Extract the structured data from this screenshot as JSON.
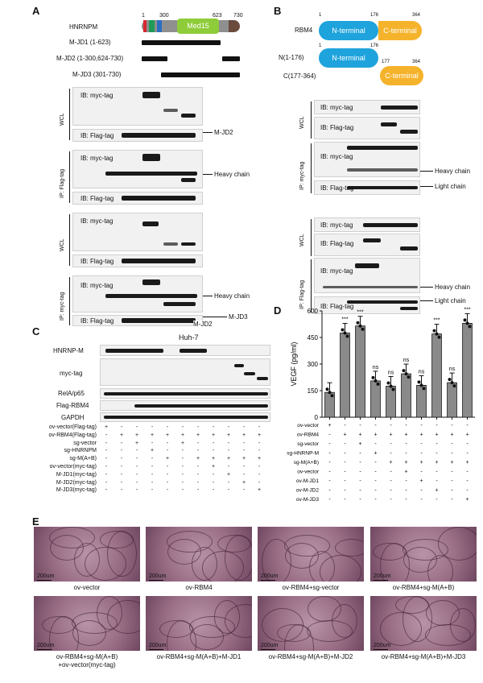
{
  "panels": {
    "a": "A",
    "b": "B",
    "c": "C",
    "d": "D",
    "e": "E"
  },
  "panel_a": {
    "protein": "HNRNPM",
    "domain": "Med15",
    "pos_start": "1",
    "pos_300": "300",
    "pos_623": "623",
    "pos_730": "730",
    "constructs": [
      "M-JD1 (1-623)",
      "M-JD2 (1-300,624-730)",
      "M-JD3 (301-730)"
    ],
    "myc_tag": "IB: myc-tag",
    "flag_tag": "IB: Flag-tag",
    "wcl": "WCL",
    "ip_flag": "IP: Flag-tag",
    "ip_myc": "IP: myc-tag",
    "heavy_chain": "Heavy chain",
    "mjd2": "M-JD2",
    "mjd3": "M-JD3"
  },
  "panel_b": {
    "protein": "RBM4",
    "nterm_label": "N(1-176)",
    "cterm_label": "C(177-364)",
    "nterm": "N-terminal",
    "cterm": "C-terminal",
    "pos_1": "1",
    "pos_176": "176",
    "pos_177": "177",
    "pos_364": "364",
    "myc_tag": "IB: myc-tag",
    "flag_tag": "IB: Flag-tag",
    "wcl": "WCL",
    "ip_myc": "IP: myc-tag",
    "ip_flag": "IP: Flag-tag",
    "heavy_chain": "Heavy chain",
    "light_chain": "Light chain"
  },
  "panel_c": {
    "cell_line": "Huh-7",
    "blots": [
      "HNRNP-M",
      "myc-tag",
      "RelA/p65",
      "Flag-RBM4",
      "GAPDH"
    ],
    "conditions": [
      "ov-vector(Flag-tag)",
      "ov-RBM4(Flag-tag)",
      "sg-vector",
      "sg-HNRNPM",
      "sg-M(A+B)",
      "ov-vector(myc-tag)",
      "M-JD1(myc-tag)",
      "M-JD2(myc-tag)",
      "M-JD3(myc-tag)"
    ],
    "grid": [
      [
        "+",
        "-",
        "-",
        "-",
        "-",
        "-",
        "-",
        "-",
        "-",
        "-",
        "-"
      ],
      [
        "-",
        "+",
        "+",
        "+",
        "+",
        "+",
        "+",
        "+",
        "+",
        "+",
        "+"
      ],
      [
        "-",
        "-",
        "+",
        "-",
        "-",
        "+",
        "-",
        "-",
        "-",
        "-",
        "-"
      ],
      [
        "-",
        "-",
        "-",
        "+",
        "-",
        "-",
        "-",
        "-",
        "-",
        "-",
        "-"
      ],
      [
        "-",
        "-",
        "-",
        "-",
        "+",
        "-",
        "+",
        "+",
        "+",
        "+",
        "+"
      ],
      [
        "-",
        "-",
        "-",
        "-",
        "-",
        "-",
        "-",
        "+",
        "-",
        "-",
        "-"
      ],
      [
        "-",
        "-",
        "-",
        "-",
        "-",
        "-",
        "-",
        "-",
        "+",
        "-",
        "-"
      ],
      [
        "-",
        "-",
        "-",
        "-",
        "-",
        "-",
        "-",
        "-",
        "-",
        "+",
        "-"
      ],
      [
        "-",
        "-",
        "-",
        "-",
        "-",
        "-",
        "-",
        "-",
        "-",
        "-",
        "+"
      ]
    ]
  },
  "chart_data": {
    "type": "bar",
    "ylabel": "VEGF (pg/ml)",
    "ylim": [
      0,
      600
    ],
    "yticks": [
      "0",
      "150",
      "300",
      "450",
      "600"
    ],
    "values": [
      140,
      475,
      515,
      205,
      175,
      245,
      180,
      470,
      195,
      530
    ],
    "significance": [
      "",
      "***",
      "***",
      "ns",
      "ns",
      "ns",
      "ns",
      "***",
      "ns",
      "***"
    ],
    "conditions": [
      "ov-vector",
      "ov-RBM4",
      "sg-vector",
      "sg-HNRNP-M",
      "sg-M(A+B)",
      "ov-vector",
      "ov-M-JD1",
      "ov-M-JD2",
      "ov-M-JD3"
    ],
    "grid": [
      [
        "+",
        "-",
        "-",
        "-",
        "-",
        "-",
        "-",
        "-",
        "-",
        "-"
      ],
      [
        "-",
        "+",
        "+",
        "+",
        "+",
        "+",
        "+",
        "+",
        "+",
        "+"
      ],
      [
        "-",
        "-",
        "+",
        "-",
        "-",
        "-",
        "-",
        "-",
        "-",
        "-"
      ],
      [
        "-",
        "-",
        "-",
        "+",
        "-",
        "-",
        "-",
        "-",
        "-",
        "-"
      ],
      [
        "-",
        "-",
        "-",
        "-",
        "+",
        "+",
        "+",
        "+",
        "+",
        "+"
      ],
      [
        "-",
        "-",
        "-",
        "-",
        "-",
        "+",
        "-",
        "-",
        "-",
        "-"
      ],
      [
        "-",
        "-",
        "-",
        "-",
        "-",
        "-",
        "+",
        "-",
        "-",
        "-"
      ],
      [
        "-",
        "-",
        "-",
        "-",
        "-",
        "-",
        "-",
        "+",
        "-",
        "-"
      ],
      [
        "-",
        "-",
        "-",
        "-",
        "-",
        "-",
        "-",
        "-",
        "-",
        "+"
      ]
    ],
    "colors": {
      "bar": "#8a8a8a",
      "edge": "#111111"
    }
  },
  "panel_e": {
    "scale": "200um",
    "captions": [
      "ov-vector",
      "ov-RBM4",
      "ov-RBM4+sg-vector",
      "ov-RBM4+sg-M(A+B)",
      "ov-RBM4+sg-M(A+B)",
      "ov-RBM4+sg-M(A+B)+M-JD1",
      "ov-RBM4+sg-M(A+B)+M-JD2",
      "ov-RBM4+sg-M(A+B)+M-JD3"
    ],
    "caption_extra": "+ov-vector(myc-tag)"
  }
}
